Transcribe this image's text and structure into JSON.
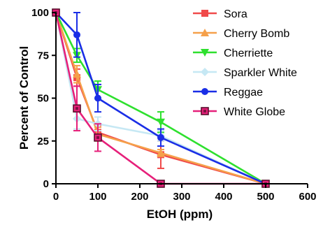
{
  "chart_data": {
    "type": "line",
    "xlabel": "EtOH (ppm)",
    "ylabel": "Percent of Control",
    "xlim": [
      0,
      600
    ],
    "ylim": [
      0,
      100
    ],
    "xticks": [
      0,
      100,
      200,
      300,
      400,
      500,
      600
    ],
    "yticks": [
      0,
      25,
      50,
      75,
      100
    ],
    "grid": false,
    "legend_position": "top-right",
    "series": [
      {
        "name": "Sora",
        "color": "#f04a4a",
        "marker": "square",
        "x": [
          0,
          50,
          100,
          250,
          500
        ],
        "y": [
          100,
          62,
          30,
          17,
          0
        ],
        "err": [
          0,
          5,
          4,
          8,
          0
        ]
      },
      {
        "name": "Cherry Bomb",
        "color": "#f5a04a",
        "marker": "triangle-up",
        "x": [
          0,
          50,
          100,
          250,
          500
        ],
        "y": [
          100,
          64,
          29,
          18,
          0
        ],
        "err": [
          0,
          5,
          4,
          2,
          0
        ]
      },
      {
        "name": "Cherriette",
        "color": "#2ee02e",
        "marker": "triangle-down",
        "x": [
          0,
          50,
          100,
          250,
          500
        ],
        "y": [
          100,
          75,
          55,
          36,
          0
        ],
        "err": [
          0,
          4,
          5,
          6,
          0
        ]
      },
      {
        "name": "Sparkler White",
        "color": "#c6e8f4",
        "marker": "diamond",
        "x": [
          0,
          50,
          100,
          250,
          500
        ],
        "y": [
          100,
          38,
          35,
          28,
          0
        ],
        "err": [
          0,
          6,
          4,
          3,
          0
        ]
      },
      {
        "name": "Reggae",
        "color": "#1a2ee6",
        "marker": "circle",
        "x": [
          0,
          50,
          100,
          250,
          500
        ],
        "y": [
          100,
          87,
          50,
          27,
          0
        ],
        "err": [
          0,
          13,
          8,
          5,
          0
        ]
      },
      {
        "name": "White Globe",
        "color": "#e6207a",
        "marker": "square-open",
        "x": [
          0,
          50,
          100,
          250,
          500
        ],
        "y": [
          100,
          44,
          27,
          0,
          0
        ],
        "err": [
          0,
          13,
          8,
          0,
          0
        ]
      }
    ]
  }
}
